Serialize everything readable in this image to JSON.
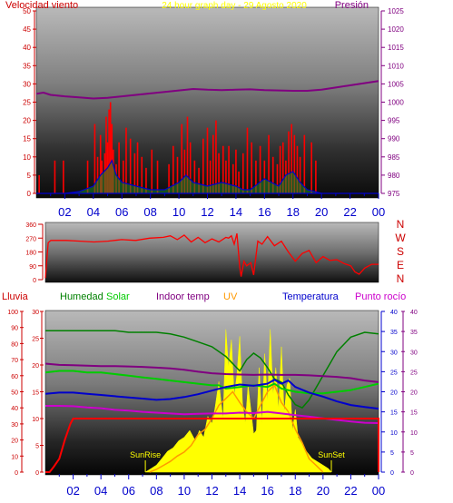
{
  "colors": {
    "wind": "#ff0000",
    "gust": "#ff0000",
    "wind_avg": "#0000cc",
    "pressure": "#800080",
    "direction": "#ff0000",
    "rain": "#ff0000",
    "humidity": "#008000",
    "solar": "#00cc00",
    "indoor_temp": "#800080",
    "uv": "#ff9900",
    "temperature": "#0000cc",
    "dew_point": "#cc00cc",
    "axis_text": "#cc0000",
    "time_axis": "#0000cc",
    "title": "#ffff00",
    "sun_labels": "#ffff00"
  },
  "chart_data": [
    {
      "type": "line",
      "title": "24 hour graph day - 29 Agosto 2020",
      "legend": {
        "left": "Velocidad viento",
        "right": "Presión"
      },
      "x_ticks": [
        "02",
        "04",
        "06",
        "08",
        "10",
        "12",
        "14",
        "16",
        "18",
        "20",
        "22",
        "00"
      ],
      "xlim_hours": [
        0,
        24
      ],
      "y_left": {
        "ticks": [
          "0",
          "5",
          "10",
          "15",
          "20",
          "25",
          "30",
          "35",
          "40",
          "45",
          "50"
        ],
        "ylim": [
          0,
          50
        ]
      },
      "y_right": {
        "ticks": [
          "975",
          "980",
          "985",
          "990",
          "995",
          "1000",
          "1005",
          "1010",
          "1015",
          "1020",
          "1025"
        ],
        "ylim": [
          975,
          1025
        ]
      },
      "series": {
        "gust": {
          "x": [
            0.2,
            0.4,
            1.3,
            1.5,
            1.9,
            2.3,
            3.6,
            3.8,
            4.1,
            4.3,
            4.5,
            4.6,
            4.8,
            4.9,
            5.0,
            5.1,
            5.2,
            5.3,
            5.4,
            5.6,
            5.8,
            6.1,
            6.3,
            6.6,
            6.9,
            7.1,
            7.4,
            7.7,
            8.1,
            8.5,
            9.3,
            9.6,
            9.9,
            10.2,
            10.4,
            10.6,
            10.8,
            11.1,
            11.4,
            11.7,
            12.0,
            12.2,
            12.4,
            12.6,
            12.8,
            13.1,
            13.3,
            13.5,
            13.8,
            14.0,
            14.2,
            14.5,
            14.8,
            15.1,
            15.4,
            15.7,
            16.0,
            16.3,
            16.6,
            16.9,
            17.1,
            17.3,
            17.5,
            17.7,
            17.9,
            18.1,
            18.3,
            18.5,
            18.8,
            19.3,
            19.6
          ],
          "values": [
            5,
            0,
            9,
            0,
            9,
            0,
            9,
            0,
            19,
            10,
            16,
            9,
            11,
            21,
            14,
            23,
            25,
            19,
            12,
            8,
            14,
            9,
            18,
            15,
            11,
            14,
            10,
            7,
            12,
            9,
            8,
            13,
            10,
            19,
            12,
            21,
            14,
            9,
            7,
            15,
            18,
            9,
            16,
            20,
            11,
            13,
            9,
            13,
            8,
            12,
            6,
            11,
            18,
            14,
            9,
            13,
            9,
            16,
            10,
            8,
            13,
            14,
            9,
            17,
            19,
            16,
            13,
            10,
            16,
            14,
            9
          ]
        },
        "wind_avg": {
          "x": [
            0,
            2,
            3,
            4,
            4.5,
            5,
            5.3,
            5.6,
            6,
            7,
            8,
            9,
            10,
            10.5,
            11,
            12,
            13,
            14,
            14.5,
            15,
            16,
            17,
            17.5,
            18,
            18.5,
            19,
            20,
            21,
            22,
            23,
            24
          ],
          "values": [
            0,
            0,
            0.5,
            2,
            5,
            7,
            9,
            5,
            3,
            2,
            1,
            1,
            3,
            5,
            3,
            2,
            3,
            2,
            1,
            1,
            4,
            2,
            5,
            6,
            3,
            1,
            0,
            0,
            0,
            0,
            0
          ]
        },
        "pressure": {
          "x": [
            0,
            0.5,
            1,
            2,
            3,
            4,
            5,
            6,
            7,
            8,
            9,
            10,
            11,
            12,
            13,
            14,
            15,
            16,
            17,
            18,
            19,
            20,
            21,
            22,
            23,
            24
          ],
          "values": [
            1002.3,
            1002.6,
            1002.0,
            1001.6,
            1001.3,
            1001.0,
            1001.2,
            1001.6,
            1002.0,
            1002.4,
            1002.8,
            1003.2,
            1003.6,
            1003.4,
            1003.3,
            1003.4,
            1003.5,
            1003.3,
            1003.2,
            1003.1,
            1003.1,
            1003.4,
            1004.0,
            1004.6,
            1005.2,
            1005.8
          ]
        }
      }
    },
    {
      "type": "line",
      "legend_letters": [
        "N",
        "W",
        "S",
        "E",
        "N"
      ],
      "y_ticks": [
        "0",
        "90",
        "180",
        "270",
        "360"
      ],
      "ylim": [
        0,
        360
      ],
      "xlim_hours": [
        0,
        24
      ],
      "series": {
        "direction": {
          "x": [
            0,
            0.2,
            0.4,
            0.8,
            1.5,
            2.5,
            3.5,
            4.5,
            5.5,
            6.5,
            7.5,
            8.5,
            9.0,
            9.5,
            10.0,
            10.5,
            11.0,
            11.5,
            12.0,
            12.5,
            13.0,
            13.2,
            13.4,
            13.6,
            13.8,
            14.0,
            14.1,
            14.3,
            14.5,
            14.8,
            15.0,
            15.3,
            15.6,
            16.0,
            16.5,
            17.0,
            17.5,
            18.0,
            18.5,
            19.0,
            19.5,
            20.0,
            20.5,
            21.0,
            21.5,
            22.0,
            22.3,
            22.6,
            23.0,
            23.5,
            24.0
          ],
          "values": [
            10,
            240,
            255,
            255,
            255,
            250,
            245,
            250,
            260,
            255,
            270,
            275,
            285,
            260,
            290,
            245,
            275,
            240,
            265,
            245,
            275,
            270,
            285,
            230,
            300,
            80,
            20,
            120,
            90,
            110,
            30,
            250,
            230,
            280,
            220,
            250,
            180,
            120,
            170,
            190,
            110,
            150,
            125,
            130,
            105,
            90,
            50,
            35,
            75,
            100,
            100
          ]
        }
      }
    },
    {
      "type": "line",
      "legend": [
        "Lluvia",
        "Humedad",
        "Solar",
        "Indoor temp",
        "UV",
        "Temperatura",
        "Punto rocío"
      ],
      "x_ticks": [
        "02",
        "04",
        "06",
        "08",
        "10",
        "12",
        "14",
        "16",
        "18",
        "20",
        "22",
        "00"
      ],
      "xlim_hours": [
        0,
        24
      ],
      "y_rain": {
        "ticks": [
          "0",
          "10",
          "20",
          "30",
          "40",
          "50",
          "60",
          "70",
          "80",
          "90",
          "100"
        ],
        "ylim": [
          0,
          100
        ]
      },
      "y_left": {
        "ticks": [
          "0",
          "5",
          "10",
          "15",
          "20",
          "25",
          "30"
        ],
        "ylim": [
          0,
          30
        ]
      },
      "y_right": {
        "ticks": [
          "0",
          "5",
          "10",
          "15",
          "20",
          "25",
          "30",
          "35",
          "40"
        ],
        "ylim": [
          0,
          40
        ]
      },
      "annotations": {
        "sunrise": "SunRise",
        "sunset": "SunSet",
        "sunrise_hour": 7.2,
        "sunset_hour": 20.6
      },
      "series": {
        "rain": {
          "x": [
            0,
            0.3,
            0.6,
            1.0,
            1.4,
            1.8,
            2.0,
            2.2,
            4,
            6,
            8,
            10,
            12,
            14,
            16,
            18,
            20,
            22,
            24
          ],
          "values": [
            0,
            0,
            1,
            2.5,
            6,
            9,
            10,
            10,
            10,
            10,
            10,
            10,
            10,
            10,
            10,
            10,
            10,
            10,
            10
          ]
        },
        "humidity": {
          "x": [
            0,
            1,
            2,
            3,
            4,
            5,
            6,
            7,
            8,
            9,
            10,
            11,
            12,
            13,
            14,
            14.5,
            15,
            15.5,
            16,
            16.5,
            17,
            17.5,
            18,
            18.5,
            19,
            20,
            21,
            22,
            23,
            24
          ],
          "values": [
            88,
            88,
            88,
            88,
            88,
            88,
            87,
            87,
            87,
            86,
            84,
            81,
            78,
            72,
            63,
            70,
            74,
            71,
            65,
            58,
            56,
            48,
            42,
            40,
            45,
            60,
            75,
            84,
            87,
            86
          ]
        },
        "solar": {
          "x": [
            0,
            1,
            2,
            3,
            4,
            5,
            6,
            7,
            8,
            9,
            10,
            11,
            12,
            12.5,
            13,
            14,
            15,
            16,
            16.5,
            17,
            18,
            19,
            20,
            21,
            22,
            23,
            24
          ],
          "values": [
            62,
            63,
            63,
            62,
            62,
            61,
            60,
            59,
            58,
            57,
            56,
            55,
            54,
            54,
            52,
            53,
            54,
            53,
            55,
            52,
            50,
            49,
            49,
            50,
            51,
            53,
            55
          ]
        },
        "indoor_temp": {
          "x": [
            0,
            1,
            2,
            3,
            4,
            5,
            6,
            7,
            8,
            9,
            10,
            11,
            12,
            13,
            14,
            15,
            16,
            17,
            18,
            19,
            20,
            21,
            22,
            23,
            24
          ],
          "values": [
            27.0,
            26.7,
            26.6,
            26.5,
            26.4,
            26.4,
            26.3,
            26.2,
            26.0,
            25.8,
            25.5,
            25.0,
            24.6,
            24.4,
            24.3,
            24.2,
            24.3,
            24.2,
            24.2,
            24.1,
            23.9,
            23.7,
            23.4,
            22.8,
            22.4
          ]
        },
        "temperature": {
          "x": [
            0,
            1,
            2,
            3,
            4,
            5,
            6,
            7,
            8,
            9,
            10,
            11,
            12,
            13,
            14,
            15,
            16,
            16.5,
            17,
            17.5,
            18,
            19,
            20,
            21,
            22,
            23,
            24
          ],
          "values": [
            19.5,
            19.8,
            19.8,
            19.5,
            19.2,
            18.9,
            18.6,
            18.3,
            18.0,
            18.2,
            18.7,
            19.4,
            20.3,
            21.2,
            21.8,
            21.5,
            22.0,
            23.0,
            22.0,
            22.8,
            21.2,
            19.8,
            18.8,
            17.6,
            16.7,
            16.2,
            15.8
          ]
        },
        "dew_point": {
          "x": [
            0,
            1,
            2,
            3,
            4,
            5,
            6,
            7,
            8,
            9,
            10,
            11,
            12,
            13,
            14,
            15,
            16,
            17,
            18,
            19,
            20,
            21,
            22,
            23,
            24
          ],
          "values": [
            16.5,
            16.5,
            16.4,
            16.1,
            15.9,
            15.5,
            15.3,
            15.0,
            14.8,
            14.6,
            14.4,
            14.5,
            14.6,
            14.6,
            14.8,
            14.7,
            15.0,
            14.6,
            14.2,
            13.8,
            13.4,
            13.0,
            12.6,
            12.3,
            12.2
          ]
        },
        "uv": {
          "x": [
            7.5,
            8,
            8.5,
            9,
            9.5,
            10,
            10.5,
            11,
            11.5,
            12,
            12.5,
            13,
            13.5,
            14,
            14.5,
            15,
            15.5,
            16,
            16.5,
            17,
            17.5,
            18,
            18.5,
            19,
            19.5,
            20
          ],
          "values": [
            0,
            0.2,
            0.5,
            0.8,
            1.2,
            1.5,
            2,
            2.8,
            3.2,
            4,
            5,
            5.5,
            6,
            5.2,
            4.5,
            4,
            5,
            6,
            6.5,
            5.2,
            4.5,
            3.2,
            2.2,
            1,
            0.5,
            0
          ]
        },
        "solar_radiation": {
          "x": [
            7.2,
            7.6,
            8,
            8.4,
            8.8,
            9.2,
            9.6,
            10,
            10.4,
            10.8,
            11.1,
            11.4,
            11.7,
            12,
            12.2,
            12.5,
            12.8,
            13.0,
            13.2,
            13.4,
            13.6,
            13.8,
            14.0,
            14.2,
            14.4,
            14.6,
            14.8,
            15.0,
            15.2,
            15.4,
            15.6,
            15.8,
            16.0,
            16.2,
            16.4,
            16.6,
            16.8,
            17.0,
            17.2,
            17.4,
            17.6,
            17.8,
            18.0,
            18.2,
            18.5,
            18.8,
            19.2,
            19.6,
            20.0,
            20.4,
            20.6
          ],
          "values": [
            0,
            1,
            2,
            4,
            6,
            7,
            9,
            10,
            12,
            9,
            12,
            10,
            16,
            14,
            18,
            26,
            15,
            41,
            30,
            38,
            22,
            28,
            39,
            20,
            14,
            25,
            18,
            11,
            12,
            30,
            14,
            34,
            20,
            41,
            22,
            30,
            18,
            36,
            17,
            25,
            27,
            12,
            18,
            10,
            8,
            6,
            4,
            3,
            2,
            1,
            0
          ]
        }
      }
    }
  ]
}
